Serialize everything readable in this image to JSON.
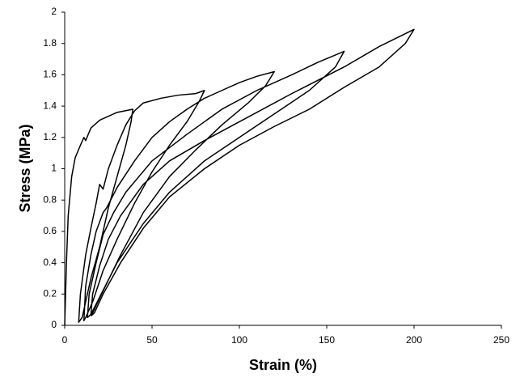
{
  "chart_data": {
    "type": "line",
    "x_label": "Strain (%)",
    "y_label": "Stress (MPa)",
    "xlim": [
      0,
      250
    ],
    "xticks": [
      0,
      50,
      100,
      150,
      200,
      250
    ],
    "ylim": [
      0,
      2
    ],
    "yticks": [
      0,
      0.2,
      0.4,
      0.6,
      0.8,
      1,
      1.2,
      1.4,
      1.6,
      1.8,
      2
    ],
    "grid": false,
    "series": [
      {
        "color": "#000000",
        "x": [
          0,
          1,
          2,
          4,
          6,
          9,
          11,
          12,
          15,
          20,
          30,
          39,
          38,
          35,
          30,
          25,
          20,
          15,
          12,
          10,
          8,
          9,
          12,
          15,
          18,
          20,
          22,
          25,
          30,
          35,
          40,
          45,
          55,
          65,
          75,
          80,
          77,
          70,
          60,
          50,
          40,
          30,
          22,
          16,
          12,
          11,
          12,
          15,
          18,
          22,
          24,
          30,
          40,
          50,
          60,
          70,
          80,
          90,
          100,
          110,
          120,
          115,
          105,
          90,
          75,
          60,
          45,
          32,
          22,
          16,
          13,
          14,
          18,
          22,
          28,
          35,
          50,
          70,
          90,
          110,
          130,
          145,
          160,
          155,
          140,
          120,
          100,
          80,
          60,
          45,
          30,
          20,
          15,
          16,
          20,
          25,
          32,
          45,
          60,
          80,
          100,
          130,
          160,
          180,
          200,
          195,
          180,
          160,
          140,
          120,
          100,
          80,
          60,
          45,
          32,
          22,
          17,
          15
        ],
        "values": [
          0,
          0.4,
          0.7,
          0.95,
          1.07,
          1.15,
          1.2,
          1.18,
          1.26,
          1.31,
          1.36,
          1.38,
          1.3,
          1.15,
          0.95,
          0.75,
          0.5,
          0.3,
          0.15,
          0.05,
          0.02,
          0.2,
          0.45,
          0.62,
          0.78,
          0.9,
          0.87,
          1.0,
          1.15,
          1.28,
          1.37,
          1.42,
          1.45,
          1.47,
          1.48,
          1.5,
          1.43,
          1.3,
          1.15,
          0.98,
          0.78,
          0.55,
          0.35,
          0.15,
          0.05,
          0.03,
          0.25,
          0.45,
          0.6,
          0.72,
          0.75,
          0.88,
          1.05,
          1.2,
          1.3,
          1.38,
          1.45,
          1.5,
          1.55,
          1.59,
          1.62,
          1.53,
          1.42,
          1.28,
          1.12,
          0.95,
          0.72,
          0.45,
          0.22,
          0.08,
          0.05,
          0.2,
          0.4,
          0.58,
          0.72,
          0.85,
          1.05,
          1.22,
          1.38,
          1.5,
          1.6,
          1.68,
          1.75,
          1.65,
          1.5,
          1.35,
          1.2,
          1.05,
          0.85,
          0.65,
          0.4,
          0.18,
          0.07,
          0.2,
          0.38,
          0.55,
          0.7,
          0.9,
          1.05,
          1.18,
          1.3,
          1.48,
          1.65,
          1.78,
          1.89,
          1.8,
          1.65,
          1.52,
          1.38,
          1.27,
          1.15,
          1.0,
          0.82,
          0.62,
          0.4,
          0.2,
          0.08,
          0.06
        ]
      }
    ]
  }
}
